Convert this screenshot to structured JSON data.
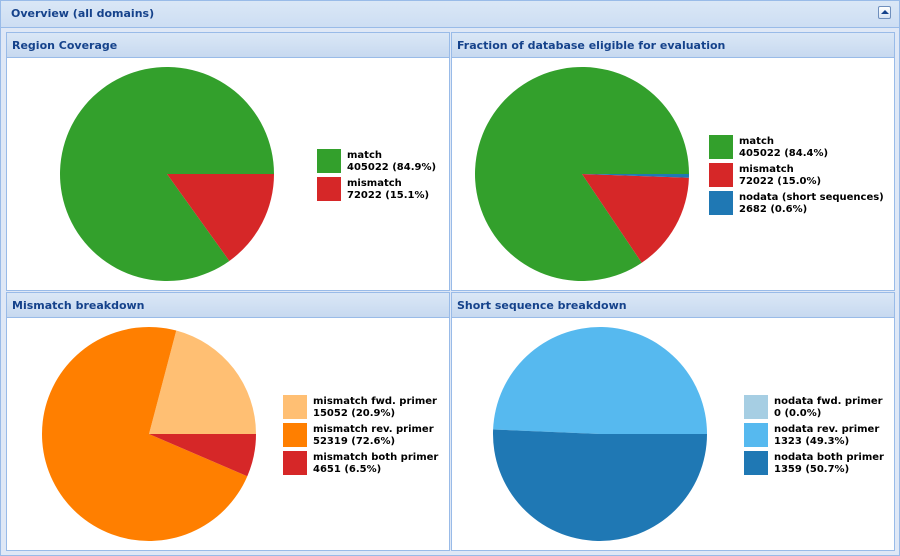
{
  "window": {
    "title": "Overview (all domains)"
  },
  "chart_data": [
    {
      "type": "pie",
      "title": "Region Coverage",
      "slices": [
        {
          "label": "match",
          "value": 405022,
          "percent": "84.9%",
          "color": "#33a02c"
        },
        {
          "label": "mismatch",
          "value": 72022,
          "percent": "15.1%",
          "color": "#d62728"
        }
      ],
      "legend": "right"
    },
    {
      "type": "pie",
      "title": "Fraction of database eligible for evaluation",
      "slices": [
        {
          "label": "match",
          "value": 405022,
          "percent": "84.4%",
          "color": "#33a02c"
        },
        {
          "label": "mismatch",
          "value": 72022,
          "percent": "15.0%",
          "color": "#d62728"
        },
        {
          "label": "nodata (short sequences)",
          "value": 2682,
          "percent": "0.6%",
          "color": "#1f78b4"
        }
      ],
      "legend": "right"
    },
    {
      "type": "pie",
      "title": "Mismatch breakdown",
      "slices": [
        {
          "label": "mismatch fwd. primer",
          "value": 15052,
          "percent": "20.9%",
          "color": "#ffbf73"
        },
        {
          "label": "mismatch rev. primer",
          "value": 52319,
          "percent": "72.6%",
          "color": "#ff7f00"
        },
        {
          "label": "mismatch both primer",
          "value": 4651,
          "percent": "6.5%",
          "color": "#d62728"
        }
      ],
      "legend": "right"
    },
    {
      "type": "pie",
      "title": "Short sequence breakdown",
      "slices": [
        {
          "label": "nodata fwd. primer",
          "value": 0,
          "percent": "0.0%",
          "color": "#a6cee3"
        },
        {
          "label": "nodata rev. primer",
          "value": 1323,
          "percent": "49.3%",
          "color": "#56b9ef"
        },
        {
          "label": "nodata both primer",
          "value": 1359,
          "percent": "50.7%",
          "color": "#1f78b4"
        }
      ],
      "legend": "right"
    }
  ]
}
